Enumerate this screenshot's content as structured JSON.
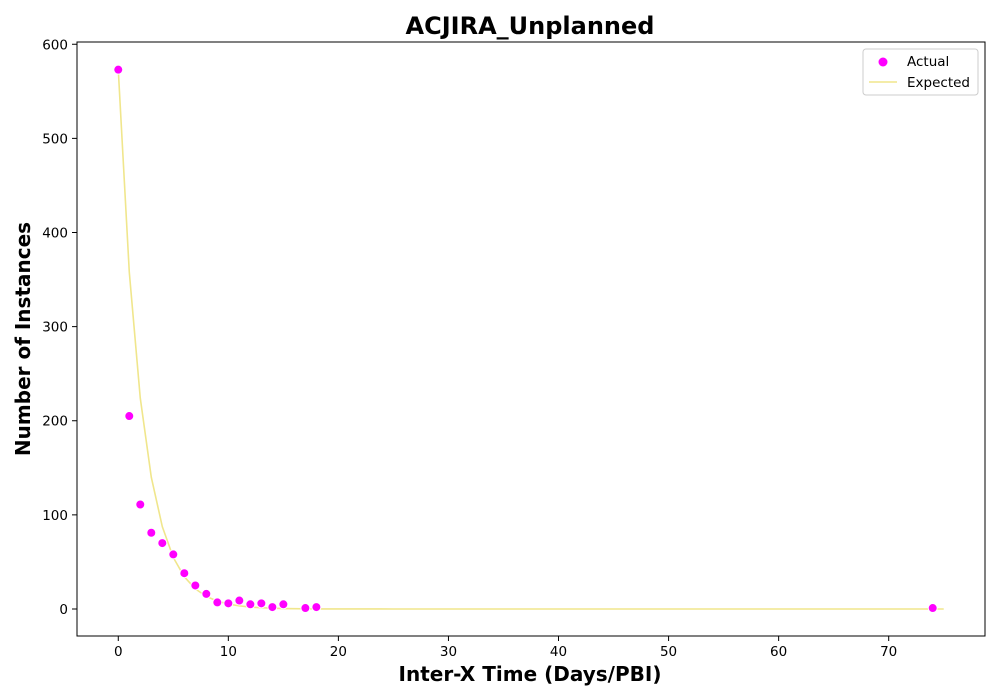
{
  "chart_data": {
    "type": "scatter",
    "title": "ACJIRA_Unplanned",
    "xlabel": "Inter-X Time (Days/PBI)",
    "ylabel": "Number of Instances",
    "xlim": [
      -3.75,
      78.75
    ],
    "ylim": [
      -28.7,
      602.4
    ],
    "xticks": [
      0,
      10,
      20,
      30,
      40,
      50,
      60,
      70
    ],
    "yticks": [
      0,
      100,
      200,
      300,
      400,
      500,
      600
    ],
    "grid": false,
    "legend_position": "top-right",
    "series": [
      {
        "name": "Actual",
        "kind": "scatter",
        "color": "#ff00ff",
        "points": [
          [
            0,
            573
          ],
          [
            1,
            205
          ],
          [
            2,
            111
          ],
          [
            3,
            81
          ],
          [
            4,
            70
          ],
          [
            5,
            58
          ],
          [
            6,
            38
          ],
          [
            7,
            25
          ],
          [
            8,
            16
          ],
          [
            9,
            7
          ],
          [
            10,
            6
          ],
          [
            11,
            9
          ],
          [
            12,
            5
          ],
          [
            13,
            6
          ],
          [
            14,
            2
          ],
          [
            15,
            5
          ],
          [
            17,
            1
          ],
          [
            18,
            2
          ],
          [
            74,
            1
          ]
        ]
      },
      {
        "name": "Expected",
        "kind": "line",
        "color": "#f0e68c",
        "points": [
          [
            0,
            573
          ],
          [
            1,
            358
          ],
          [
            2,
            224
          ],
          [
            3,
            140
          ],
          [
            4,
            87.5
          ],
          [
            5,
            54.7
          ],
          [
            6,
            34.2
          ],
          [
            7,
            21.4
          ],
          [
            8,
            13.4
          ],
          [
            9,
            8.4
          ],
          [
            10,
            5.2
          ],
          [
            11,
            3.3
          ],
          [
            12,
            2.0
          ],
          [
            13,
            1.3
          ],
          [
            14,
            0.8
          ],
          [
            15,
            0.5
          ],
          [
            16,
            0.3
          ],
          [
            17,
            0.2
          ],
          [
            18,
            0.1
          ],
          [
            19,
            0.08
          ],
          [
            20,
            0.05
          ],
          [
            25,
            0
          ],
          [
            30,
            0
          ],
          [
            35,
            0
          ],
          [
            40,
            0
          ],
          [
            45,
            0
          ],
          [
            50,
            0
          ],
          [
            55,
            0
          ],
          [
            60,
            0
          ],
          [
            65,
            0
          ],
          [
            70,
            0
          ],
          [
            75,
            0
          ]
        ]
      }
    ]
  }
}
